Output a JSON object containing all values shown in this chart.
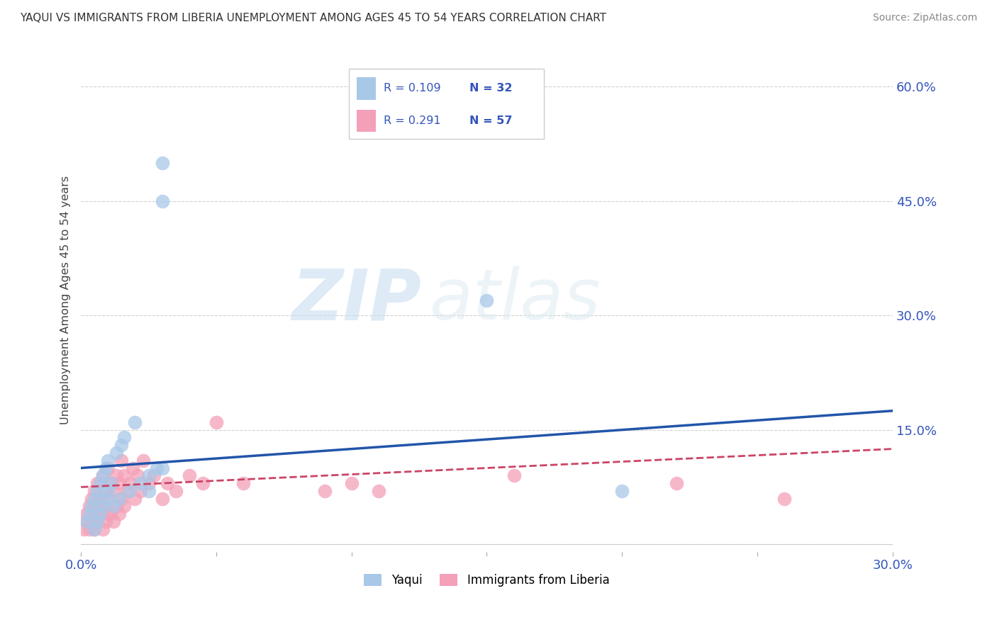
{
  "title": "YAQUI VS IMMIGRANTS FROM LIBERIA UNEMPLOYMENT AMONG AGES 45 TO 54 YEARS CORRELATION CHART",
  "source": "Source: ZipAtlas.com",
  "ylabel": "Unemployment Among Ages 45 to 54 years",
  "xlim": [
    0.0,
    0.3
  ],
  "ylim": [
    -0.01,
    0.65
  ],
  "xticks": [
    0.0,
    0.05,
    0.1,
    0.15,
    0.2,
    0.25,
    0.3
  ],
  "yticks": [
    0.0,
    0.15,
    0.3,
    0.45,
    0.6
  ],
  "yaqui_color": "#a8c8e8",
  "liberia_color": "#f4a0b8",
  "yaqui_line_color": "#2255aa",
  "liberia_line_color": "#cc4466",
  "watermark_zip": "ZIP",
  "watermark_atlas": "atlas",
  "legend_R1": "R = 0.109",
  "legend_N1": "N = 32",
  "legend_R2": "R = 0.291",
  "legend_N2": "N = 57",
  "legend_label1": "Yaqui",
  "legend_label2": "Immigrants from Liberia",
  "yaqui_line_x0": 0.0,
  "yaqui_line_y0": 0.1,
  "yaqui_line_x1": 0.3,
  "yaqui_line_y1": 0.175,
  "liberia_line_x0": 0.0,
  "liberia_line_y0": 0.075,
  "liberia_line_x1": 0.3,
  "liberia_line_y1": 0.125,
  "background_color": "#ffffff",
  "grid_color": "#cccccc",
  "yaqui_x": [
    0.002,
    0.003,
    0.004,
    0.005,
    0.005,
    0.006,
    0.006,
    0.007,
    0.007,
    0.008,
    0.008,
    0.009,
    0.009,
    0.01,
    0.01,
    0.011,
    0.012,
    0.013,
    0.014,
    0.015,
    0.016,
    0.018,
    0.02,
    0.022,
    0.025,
    0.028,
    0.03,
    0.15,
    0.2,
    0.025,
    0.03,
    0.03
  ],
  "yaqui_y": [
    0.03,
    0.04,
    0.05,
    0.02,
    0.06,
    0.03,
    0.07,
    0.04,
    0.08,
    0.05,
    0.09,
    0.06,
    0.1,
    0.07,
    0.11,
    0.08,
    0.05,
    0.12,
    0.06,
    0.13,
    0.14,
    0.07,
    0.16,
    0.08,
    0.09,
    0.1,
    0.1,
    0.32,
    0.07,
    0.07,
    0.45,
    0.5
  ],
  "liberia_x": [
    0.001,
    0.002,
    0.002,
    0.003,
    0.003,
    0.004,
    0.004,
    0.005,
    0.005,
    0.005,
    0.006,
    0.006,
    0.006,
    0.007,
    0.007,
    0.008,
    0.008,
    0.008,
    0.009,
    0.009,
    0.01,
    0.01,
    0.01,
    0.011,
    0.011,
    0.012,
    0.012,
    0.013,
    0.013,
    0.014,
    0.014,
    0.015,
    0.015,
    0.016,
    0.016,
    0.017,
    0.018,
    0.019,
    0.02,
    0.021,
    0.022,
    0.023,
    0.025,
    0.027,
    0.03,
    0.032,
    0.035,
    0.04,
    0.045,
    0.05,
    0.06,
    0.09,
    0.1,
    0.11,
    0.16,
    0.22,
    0.26
  ],
  "liberia_y": [
    0.02,
    0.03,
    0.04,
    0.02,
    0.05,
    0.03,
    0.06,
    0.02,
    0.04,
    0.07,
    0.03,
    0.05,
    0.08,
    0.04,
    0.06,
    0.02,
    0.05,
    0.09,
    0.03,
    0.07,
    0.04,
    0.06,
    0.1,
    0.04,
    0.08,
    0.03,
    0.07,
    0.05,
    0.09,
    0.04,
    0.08,
    0.06,
    0.11,
    0.05,
    0.09,
    0.07,
    0.08,
    0.1,
    0.06,
    0.09,
    0.07,
    0.11,
    0.08,
    0.09,
    0.06,
    0.08,
    0.07,
    0.09,
    0.08,
    0.16,
    0.08,
    0.07,
    0.08,
    0.07,
    0.09,
    0.08,
    0.06
  ]
}
